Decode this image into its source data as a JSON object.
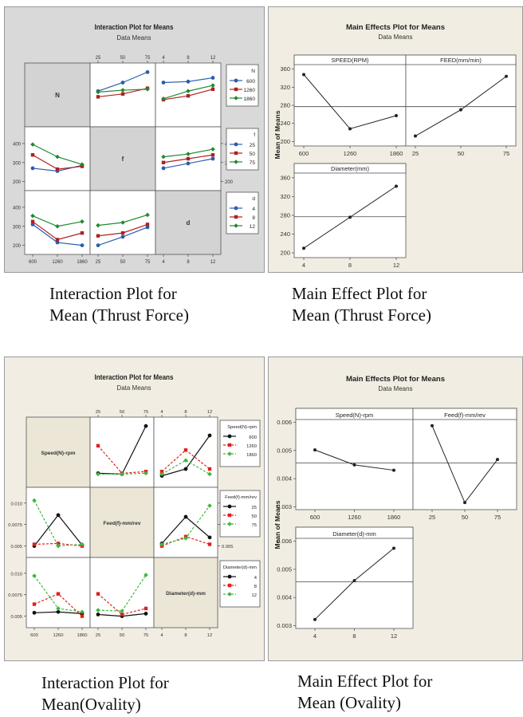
{
  "charts": {
    "int_thrust": {
      "title": "Interaction Plot for Means",
      "subtitle": "Data Means",
      "factors": [
        "N",
        "f",
        "d"
      ],
      "levels": [
        [
          "600",
          "1260",
          "1860"
        ],
        [
          "25",
          "50",
          "75"
        ],
        [
          "4",
          "8",
          "12"
        ]
      ],
      "ylims": [
        [
          190,
          450
        ],
        [
          190,
          450
        ],
        [
          190,
          450
        ]
      ],
      "yticks": [
        [
          200,
          300,
          400
        ],
        [
          200,
          300,
          400
        ],
        [
          200,
          300,
          400
        ]
      ],
      "legend_titles": [
        "N",
        "f",
        "d"
      ],
      "colors": [
        "#2a5db0",
        "#b02020",
        "#1f8a2e"
      ],
      "dash": [
        false,
        false,
        false
      ],
      "cells": [
        [
          null,
          [
            [
              340,
              385,
              440
            ],
            [
              310,
              325,
              355
            ],
            [
              335,
              345,
              350
            ]
          ],
          [
            [
              385,
              390,
              410
            ],
            [
              295,
              315,
              350
            ],
            [
              300,
              340,
              370
            ]
          ]
        ],
        [
          [
            [
              270,
              255,
              285
            ],
            [
              340,
              265,
              280
            ],
            [
              395,
              330,
              290
            ]
          ],
          null,
          [
            [
              270,
              295,
              320
            ],
            [
              300,
              320,
              340
            ],
            [
              330,
              345,
              370
            ]
          ]
        ],
        [
          [
            [
              310,
              215,
              200
            ],
            [
              325,
              230,
              265
            ],
            [
              355,
              300,
              325
            ]
          ],
          [
            [
              200,
              245,
              295
            ],
            [
              250,
              265,
              310
            ],
            [
              305,
              320,
              360
            ]
          ],
          null
        ]
      ]
    },
    "main_thrust": {
      "title": "Main Effects Plot for Means",
      "subtitle": "Data Means",
      "ylabel": "Mean of Means",
      "ylim": [
        190,
        370
      ],
      "yticks": [
        200,
        240,
        280,
        320,
        360
      ],
      "grand_mean": 277,
      "panels": [
        {
          "label": "SPEED(RPM)",
          "categories": [
            "600",
            "1260",
            "1860"
          ],
          "values": [
            348,
            228,
            257
          ]
        },
        {
          "label": "FEED(mm/min)",
          "categories": [
            "25",
            "50",
            "75"
          ],
          "values": [
            212,
            270,
            344
          ]
        },
        {
          "label": "Diameter(mm)",
          "categories": [
            "4",
            "8",
            "12"
          ],
          "values": [
            210,
            276,
            342
          ]
        }
      ]
    },
    "int_oval": {
      "title": "Interaction Plot for Means",
      "subtitle": "Data Means",
      "factors": [
        "Speed(N)-rpm",
        "Feed(f)-mm/rev",
        "Diameter(d)-mm"
      ],
      "levels": [
        [
          "600",
          "1260",
          "1860"
        ],
        [
          "25",
          "50",
          "75"
        ],
        [
          "4",
          "8",
          "12"
        ]
      ],
      "ylims": [
        [
          0.0045,
          0.011
        ],
        [
          0.0045,
          0.011
        ],
        [
          0.0045,
          0.011
        ]
      ],
      "yticks": [
        [
          0.005,
          0.0075,
          0.01
        ],
        [
          0.005,
          0.0075,
          0.01
        ],
        [
          0.005,
          0.0075,
          0.01
        ]
      ],
      "ytick_labels": [
        [
          "0.005",
          "0.0075",
          "0.010"
        ],
        [
          "0.005",
          "0.0075",
          "0.010"
        ],
        [
          "0.005",
          "0.0075",
          "0.010"
        ]
      ],
      "legend_titles": [
        "Speed(N)-rpm",
        "Feed(f)-mm/rev",
        "Diameter(d)-mm"
      ],
      "colors": [
        "#111111",
        "#e02020",
        "#3db83d"
      ],
      "dash": [
        false,
        true,
        true
      ],
      "cells": [
        [
          null,
          [
            [
              0.0053,
              0.0052,
              0.0108
            ],
            [
              0.0085,
              0.0053,
              0.0055
            ],
            [
              0.0052,
              0.0052,
              0.0053
            ]
          ],
          [
            [
              0.005,
              0.0058,
              0.0097
            ],
            [
              0.0055,
              0.008,
              0.0058
            ],
            [
              0.0052,
              0.0068,
              0.0052
            ]
          ]
        ],
        [
          [
            [
              0.005,
              0.0086,
              0.0051
            ],
            [
              0.0052,
              0.0053,
              0.005
            ],
            [
              0.0103,
              0.005,
              0.0052
            ]
          ],
          null,
          [
            [
              0.0053,
              0.0084,
              0.006
            ],
            [
              0.005,
              0.0061,
              0.0052
            ],
            [
              0.0052,
              0.0059,
              0.0097
            ]
          ]
        ],
        [
          [
            [
              0.0054,
              0.0055,
              0.0053
            ],
            [
              0.0064,
              0.0076,
              0.005
            ],
            [
              0.0097,
              0.0059,
              0.0055
            ]
          ],
          [
            [
              0.0052,
              0.005,
              0.0053
            ],
            [
              0.0076,
              0.0052,
              0.0059
            ],
            [
              0.0057,
              0.0056,
              0.0098
            ]
          ],
          null
        ]
      ]
    },
    "main_oval": {
      "title": "Main Effects Plot for Means",
      "subtitle": "Data Means",
      "ylabel": "Mean of Means",
      "ylim": [
        0.0029,
        0.0061
      ],
      "yticks": [
        0.003,
        0.004,
        0.005,
        0.006
      ],
      "ytick_labels": [
        "0.003",
        "0.004",
        "0.005",
        "0.006"
      ],
      "grand_mean": 0.00456,
      "panels": [
        {
          "label": "Speed(N)-rpm",
          "categories": [
            "600",
            "1260",
            "1860"
          ],
          "values": [
            0.00502,
            0.00449,
            0.0043
          ]
        },
        {
          "label": "Feed(f)-mm/rev",
          "categories": [
            "25",
            "50",
            "75"
          ],
          "values": [
            0.00588,
            0.00315,
            0.00468
          ]
        },
        {
          "label": "Diameter(d)-mm",
          "categories": [
            "4",
            "8",
            "12"
          ],
          "values": [
            0.00322,
            0.0046,
            0.00575
          ]
        }
      ]
    }
  },
  "captions": {
    "int_thrust": "Interaction Plot for\nMean (Thrust Force)",
    "main_thrust": "Main Effect Plot for\nMean (Thrust Force)",
    "int_oval": "Interaction Plot for\nMean(Ovality)",
    "main_oval": "Main Effect Plot for\nMean (Ovality)"
  },
  "chart_data": [
    {
      "type": "line",
      "title": "Interaction Plot for Means",
      "subtitle": "Data Means",
      "note": "Interaction Plot for Mean (Thrust Force); factors N, f, d",
      "series": [
        {
          "name": "N=600 vs f",
          "x": [
            "25",
            "50",
            "75"
          ],
          "values": [
            340,
            385,
            440
          ]
        },
        {
          "name": "N=1260 vs f",
          "x": [
            "25",
            "50",
            "75"
          ],
          "values": [
            310,
            325,
            355
          ]
        },
        {
          "name": "N=1860 vs f",
          "x": [
            "25",
            "50",
            "75"
          ],
          "values": [
            335,
            345,
            350
          ]
        },
        {
          "name": "N=600 vs d",
          "x": [
            "4",
            "8",
            "12"
          ],
          "values": [
            385,
            390,
            410
          ]
        },
        {
          "name": "N=1260 vs d",
          "x": [
            "4",
            "8",
            "12"
          ],
          "values": [
            295,
            315,
            350
          ]
        },
        {
          "name": "N=1860 vs d",
          "x": [
            "4",
            "8",
            "12"
          ],
          "values": [
            300,
            340,
            370
          ]
        },
        {
          "name": "f=25 vs N",
          "x": [
            "600",
            "1260",
            "1860"
          ],
          "values": [
            270,
            255,
            285
          ]
        },
        {
          "name": "f=50 vs N",
          "x": [
            "600",
            "1260",
            "1860"
          ],
          "values": [
            340,
            265,
            280
          ]
        },
        {
          "name": "f=75 vs N",
          "x": [
            "600",
            "1260",
            "1860"
          ],
          "values": [
            395,
            330,
            290
          ]
        },
        {
          "name": "f=25 vs d",
          "x": [
            "4",
            "8",
            "12"
          ],
          "values": [
            270,
            295,
            320
          ]
        },
        {
          "name": "f=50 vs d",
          "x": [
            "4",
            "8",
            "12"
          ],
          "values": [
            300,
            320,
            340
          ]
        },
        {
          "name": "f=75 vs d",
          "x": [
            "4",
            "8",
            "12"
          ],
          "values": [
            330,
            345,
            370
          ]
        },
        {
          "name": "d=4 vs N",
          "x": [
            "600",
            "1260",
            "1860"
          ],
          "values": [
            310,
            215,
            200
          ]
        },
        {
          "name": "d=8 vs N",
          "x": [
            "600",
            "1260",
            "1860"
          ],
          "values": [
            325,
            230,
            265
          ]
        },
        {
          "name": "d=12 vs N",
          "x": [
            "600",
            "1260",
            "1860"
          ],
          "values": [
            355,
            300,
            325
          ]
        },
        {
          "name": "d=4 vs f",
          "x": [
            "25",
            "50",
            "75"
          ],
          "values": [
            200,
            245,
            295
          ]
        },
        {
          "name": "d=8 vs f",
          "x": [
            "25",
            "50",
            "75"
          ],
          "values": [
            250,
            265,
            310
          ]
        },
        {
          "name": "d=12 vs f",
          "x": [
            "25",
            "50",
            "75"
          ],
          "values": [
            305,
            320,
            360
          ]
        }
      ]
    },
    {
      "type": "line",
      "title": "Main Effects Plot for Means",
      "subtitle": "Data Means",
      "ylabel": "Mean of Means",
      "ylim": [
        190,
        370
      ],
      "series": [
        {
          "name": "SPEED(RPM)",
          "x": [
            "600",
            "1260",
            "1860"
          ],
          "values": [
            348,
            228,
            257
          ]
        },
        {
          "name": "FEED(mm/min)",
          "x": [
            "25",
            "50",
            "75"
          ],
          "values": [
            212,
            270,
            344
          ]
        },
        {
          "name": "Diameter(mm)",
          "x": [
            "4",
            "8",
            "12"
          ],
          "values": [
            210,
            276,
            342
          ]
        }
      ],
      "grand_mean": 277
    },
    {
      "type": "line",
      "title": "Interaction Plot for Means",
      "subtitle": "Data Means",
      "note": "Interaction Plot for Mean (Ovality)",
      "series": [
        {
          "name": "Speed=600 vs Feed",
          "x": [
            "25",
            "50",
            "75"
          ],
          "values": [
            0.0053,
            0.0052,
            0.0108
          ]
        },
        {
          "name": "Speed=1260 vs Feed",
          "x": [
            "25",
            "50",
            "75"
          ],
          "values": [
            0.0085,
            0.0053,
            0.0055
          ]
        },
        {
          "name": "Speed=1860 vs Feed",
          "x": [
            "25",
            "50",
            "75"
          ],
          "values": [
            0.0052,
            0.0052,
            0.0053
          ]
        },
        {
          "name": "Speed=600 vs Diameter",
          "x": [
            "4",
            "8",
            "12"
          ],
          "values": [
            0.005,
            0.0058,
            0.0097
          ]
        },
        {
          "name": "Speed=1260 vs Diameter",
          "x": [
            "4",
            "8",
            "12"
          ],
          "values": [
            0.0055,
            0.008,
            0.0058
          ]
        },
        {
          "name": "Speed=1860 vs Diameter",
          "x": [
            "4",
            "8",
            "12"
          ],
          "values": [
            0.0052,
            0.0068,
            0.0052
          ]
        },
        {
          "name": "Feed=25 vs Speed",
          "x": [
            "600",
            "1260",
            "1860"
          ],
          "values": [
            0.005,
            0.0086,
            0.0051
          ]
        },
        {
          "name": "Feed=50 vs Speed",
          "x": [
            "600",
            "1260",
            "1860"
          ],
          "values": [
            0.0052,
            0.0053,
            0.005
          ]
        },
        {
          "name": "Feed=75 vs Speed",
          "x": [
            "600",
            "1260",
            "1860"
          ],
          "values": [
            0.0103,
            0.005,
            0.0052
          ]
        },
        {
          "name": "Feed=25 vs Diameter",
          "x": [
            "4",
            "8",
            "12"
          ],
          "values": [
            0.0053,
            0.0084,
            0.006
          ]
        },
        {
          "name": "Feed=50 vs Diameter",
          "x": [
            "4",
            "8",
            "12"
          ],
          "values": [
            0.005,
            0.0061,
            0.0052
          ]
        },
        {
          "name": "Feed=75 vs Diameter",
          "x": [
            "4",
            "8",
            "12"
          ],
          "values": [
            0.0052,
            0.0059,
            0.0097
          ]
        },
        {
          "name": "Diameter=4 vs Speed",
          "x": [
            "600",
            "1260",
            "1860"
          ],
          "values": [
            0.0054,
            0.0055,
            0.0053
          ]
        },
        {
          "name": "Diameter=8 vs Speed",
          "x": [
            "600",
            "1260",
            "1860"
          ],
          "values": [
            0.0064,
            0.0076,
            0.005
          ]
        },
        {
          "name": "Diameter=12 vs Speed",
          "x": [
            "600",
            "1260",
            "1860"
          ],
          "values": [
            0.0097,
            0.0059,
            0.0055
          ]
        },
        {
          "name": "Diameter=4 vs Feed",
          "x": [
            "25",
            "50",
            "75"
          ],
          "values": [
            0.0052,
            0.005,
            0.0053
          ]
        },
        {
          "name": "Diameter=8 vs Feed",
          "x": [
            "25",
            "50",
            "75"
          ],
          "values": [
            0.0076,
            0.0052,
            0.0059
          ]
        },
        {
          "name": "Diameter=12 vs Feed",
          "x": [
            "25",
            "50",
            "75"
          ],
          "values": [
            0.0057,
            0.0056,
            0.0098
          ]
        }
      ]
    },
    {
      "type": "line",
      "title": "Main Effects Plot for Means",
      "subtitle": "Data Means",
      "ylabel": "Mean of Means",
      "ylim": [
        0.0029,
        0.0061
      ],
      "series": [
        {
          "name": "Speed(N)-rpm",
          "x": [
            "600",
            "1260",
            "1860"
          ],
          "values": [
            0.00502,
            0.00449,
            0.0043
          ]
        },
        {
          "name": "Feed(f)-mm/rev",
          "x": [
            "25",
            "50",
            "75"
          ],
          "values": [
            0.00588,
            0.00315,
            0.00468
          ]
        },
        {
          "name": "Diameter(d)-mm",
          "x": [
            "4",
            "8",
            "12"
          ],
          "values": [
            0.00322,
            0.0046,
            0.00575
          ]
        }
      ],
      "grand_mean": 0.00456
    }
  ]
}
